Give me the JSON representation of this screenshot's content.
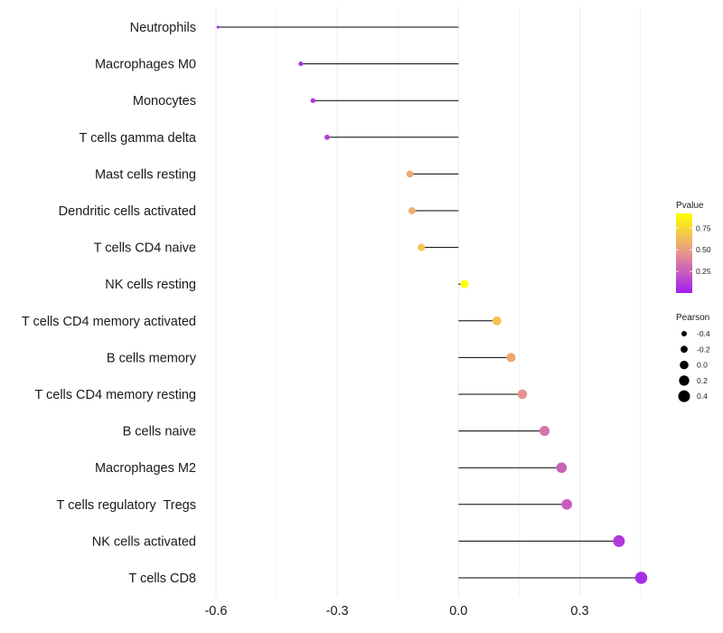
{
  "chart_data": {
    "type": "lollipop",
    "title": "",
    "xlabel": "",
    "ylabel": "",
    "xlim": [
      -0.62,
      0.48
    ],
    "x_ticks": [
      -0.6,
      -0.3,
      0.0,
      0.3
    ],
    "x_tick_labels": [
      "-0.6",
      "-0.3",
      "0.0",
      "0.3"
    ],
    "grid": true,
    "points": [
      {
        "category": "Neutrophils",
        "pearson": -0.595,
        "pvalue": 0.02
      },
      {
        "category": "Macrophages M0",
        "pearson": -0.39,
        "pvalue": 0.07
      },
      {
        "category": "Monocytes",
        "pearson": -0.36,
        "pvalue": 0.1
      },
      {
        "category": "T cells gamma delta",
        "pearson": -0.325,
        "pvalue": 0.12
      },
      {
        "category": "Mast cells resting",
        "pearson": -0.12,
        "pvalue": 0.55
      },
      {
        "category": "Dendritic cells activated",
        "pearson": -0.115,
        "pvalue": 0.57
      },
      {
        "category": "T cells CD4 naive",
        "pearson": -0.092,
        "pvalue": 0.67
      },
      {
        "category": "NK cells resting",
        "pearson": 0.015,
        "pvalue": 0.95
      },
      {
        "category": "T cells CD4 memory activated",
        "pearson": 0.095,
        "pvalue": 0.67
      },
      {
        "category": "B cells memory",
        "pearson": 0.13,
        "pvalue": 0.55
      },
      {
        "category": "T cells CD4 memory resting",
        "pearson": 0.158,
        "pvalue": 0.45
      },
      {
        "category": "B cells naive",
        "pearson": 0.213,
        "pvalue": 0.33
      },
      {
        "category": "Macrophages M2",
        "pearson": 0.255,
        "pvalue": 0.26
      },
      {
        "category": "T cells regulatory  Tregs",
        "pearson": 0.268,
        "pvalue": 0.24
      },
      {
        "category": "NK cells activated",
        "pearson": 0.397,
        "pvalue": 0.1
      },
      {
        "category": "T cells CD8",
        "pearson": 0.452,
        "pvalue": 0.06
      }
    ],
    "color_legend": {
      "title": "Pvalue",
      "domain": [
        0.0,
        0.92
      ],
      "ticks": [
        0.25,
        0.5,
        0.75
      ],
      "tick_labels": [
        "0.25",
        "0.50",
        "0.75"
      ],
      "low_color": "#a020f0",
      "mid_color": "#e8948f",
      "high_color": "#ffff00"
    },
    "size_legend": {
      "title": "Pearson",
      "domain": [
        -0.6,
        0.46
      ],
      "values": [
        -0.4,
        -0.2,
        0.0,
        0.2,
        0.4
      ],
      "labels": [
        "-0.4",
        "-0.2",
        "0.0",
        "0.2",
        "0.4"
      ],
      "key_color": "#000000"
    },
    "colors": {
      "stem": "#000000",
      "grid": "#ebebeb"
    }
  }
}
